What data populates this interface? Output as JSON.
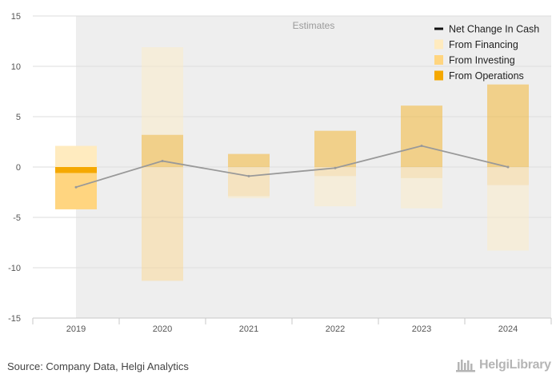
{
  "chart_data": {
    "type": "bar",
    "subtype": "stacked-waterfall-with-line",
    "title": "",
    "xlabel": "",
    "ylabel": "",
    "categories": [
      "2019",
      "2020",
      "2021",
      "2022",
      "2023",
      "2024"
    ],
    "ylim": [
      -15,
      15
    ],
    "yticks": [
      -15,
      -10,
      -5,
      0,
      5,
      10,
      15
    ],
    "grid": true,
    "estimates_start_index": 1,
    "estimates_label": "Estimates",
    "series": [
      {
        "name": "From Operations",
        "color": "#f5a800",
        "values": [
          -0.6,
          3.2,
          1.3,
          3.6,
          6.1,
          8.2
        ]
      },
      {
        "name": "From Investing",
        "color": "#ffd580",
        "values": [
          -3.6,
          -11.3,
          -2.9,
          -0.9,
          -1.1,
          -1.8
        ]
      },
      {
        "name": "From Financing",
        "color": "#ffebbf",
        "values": [
          2.1,
          8.7,
          -0.2,
          -3.0,
          -3.0,
          -6.5
        ]
      },
      {
        "name": "Net Change In Cash",
        "color": "#999999",
        "type": "line",
        "values": [
          -2.0,
          0.6,
          -0.9,
          -0.1,
          2.1,
          0.0
        ]
      }
    ],
    "legend_order": [
      "Net Change In Cash",
      "From Financing",
      "From Investing",
      "From Operations"
    ],
    "legend_position": "top-right"
  },
  "footer": {
    "source": "Source: Company Data, Helgi Analytics",
    "brand": "HelgiLibrary"
  }
}
